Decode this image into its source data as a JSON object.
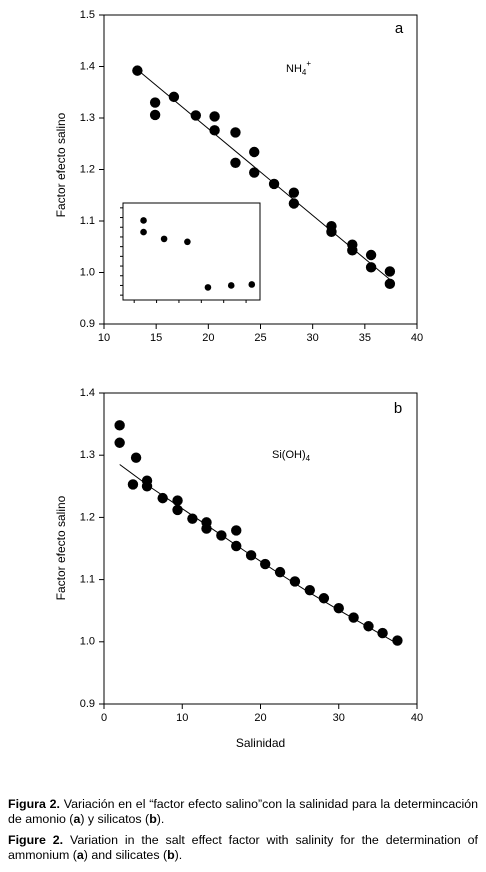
{
  "chart_data": [
    {
      "type": "scatter",
      "panel_label": "a",
      "annotation": "NH4+",
      "xlabel": "",
      "ylabel": "Factor efecto salino",
      "xlim": [
        10,
        40
      ],
      "ylim": [
        0.9,
        1.5
      ],
      "x_ticks": [
        "10",
        "15",
        "20",
        "25",
        "30",
        "35",
        "40"
      ],
      "y_ticks": [
        "0.9",
        "1.0",
        "1.1",
        "1.2",
        "1.3",
        "1.4",
        "1.5"
      ],
      "grid": false,
      "points": [
        {
          "x": 13.2,
          "y": 1.392
        },
        {
          "x": 14.9,
          "y": 1.33
        },
        {
          "x": 14.9,
          "y": 1.306
        },
        {
          "x": 16.7,
          "y": 1.341
        },
        {
          "x": 18.8,
          "y": 1.305
        },
        {
          "x": 20.6,
          "y": 1.303
        },
        {
          "x": 20.6,
          "y": 1.276
        },
        {
          "x": 22.6,
          "y": 1.272
        },
        {
          "x": 22.6,
          "y": 1.213
        },
        {
          "x": 24.4,
          "y": 1.234
        },
        {
          "x": 24.4,
          "y": 1.194
        },
        {
          "x": 26.3,
          "y": 1.172
        },
        {
          "x": 28.2,
          "y": 1.155
        },
        {
          "x": 28.2,
          "y": 1.134
        },
        {
          "x": 31.8,
          "y": 1.09
        },
        {
          "x": 31.8,
          "y": 1.079
        },
        {
          "x": 33.8,
          "y": 1.054
        },
        {
          "x": 33.8,
          "y": 1.043
        },
        {
          "x": 35.6,
          "y": 1.034
        },
        {
          "x": 35.6,
          "y": 1.01
        },
        {
          "x": 37.4,
          "y": 1.002
        },
        {
          "x": 37.4,
          "y": 0.978
        }
      ],
      "fit_line": [
        {
          "x": 13.0,
          "y": 1.397
        },
        {
          "x": 37.6,
          "y": 0.983
        }
      ],
      "inset": {
        "x_ticks": 6,
        "y_ticks": 10,
        "points": [
          {
            "x": 0.15,
            "y": 0.82
          },
          {
            "x": 0.15,
            "y": 0.7
          },
          {
            "x": 0.3,
            "y": 0.63
          },
          {
            "x": 0.47,
            "y": 0.6
          },
          {
            "x": 0.62,
            "y": 0.13
          },
          {
            "x": 0.79,
            "y": 0.15
          },
          {
            "x": 0.94,
            "y": 0.16
          }
        ]
      }
    },
    {
      "type": "scatter",
      "panel_label": "b",
      "annotation": "Si(OH)4",
      "xlabel": "Salinidad",
      "ylabel": "Factor efecto salino",
      "xlim": [
        0,
        40
      ],
      "ylim": [
        0.9,
        1.4
      ],
      "x_ticks": [
        "0",
        "10",
        "20",
        "30",
        "40"
      ],
      "y_ticks": [
        "0.9",
        "1.0",
        "1.1",
        "1.2",
        "1.3",
        "1.4"
      ],
      "grid": false,
      "points": [
        {
          "x": 2.0,
          "y": 1.348
        },
        {
          "x": 2.0,
          "y": 1.32
        },
        {
          "x": 3.7,
          "y": 1.253
        },
        {
          "x": 4.1,
          "y": 1.296
        },
        {
          "x": 5.5,
          "y": 1.259
        },
        {
          "x": 5.5,
          "y": 1.25
        },
        {
          "x": 7.5,
          "y": 1.231
        },
        {
          "x": 9.4,
          "y": 1.227
        },
        {
          "x": 9.4,
          "y": 1.212
        },
        {
          "x": 11.3,
          "y": 1.198
        },
        {
          "x": 13.1,
          "y": 1.192
        },
        {
          "x": 13.1,
          "y": 1.182
        },
        {
          "x": 15.0,
          "y": 1.171
        },
        {
          "x": 16.9,
          "y": 1.179
        },
        {
          "x": 16.9,
          "y": 1.154
        },
        {
          "x": 18.8,
          "y": 1.139
        },
        {
          "x": 20.6,
          "y": 1.125
        },
        {
          "x": 22.5,
          "y": 1.112
        },
        {
          "x": 24.4,
          "y": 1.097
        },
        {
          "x": 26.3,
          "y": 1.083
        },
        {
          "x": 28.1,
          "y": 1.07
        },
        {
          "x": 30.0,
          "y": 1.054
        },
        {
          "x": 31.9,
          "y": 1.039
        },
        {
          "x": 33.8,
          "y": 1.025
        },
        {
          "x": 35.6,
          "y": 1.014
        },
        {
          "x": 37.5,
          "y": 1.002
        }
      ],
      "fit_line": [
        {
          "x": 2.0,
          "y": 1.285
        },
        {
          "x": 6.0,
          "y": 1.248
        },
        {
          "x": 10.0,
          "y": 1.214
        },
        {
          "x": 14.0,
          "y": 1.18
        },
        {
          "x": 18.0,
          "y": 1.146
        },
        {
          "x": 22.0,
          "y": 1.113
        },
        {
          "x": 26.0,
          "y": 1.081
        },
        {
          "x": 30.0,
          "y": 1.051
        },
        {
          "x": 34.0,
          "y": 1.022
        },
        {
          "x": 37.5,
          "y": 0.997
        }
      ]
    }
  ],
  "caption": {
    "es_label": "Figura 2.",
    "es_text_1": " Variación en el “factor efecto salino”con la salinidad para la determincación de amonio (",
    "es_a": "a",
    "es_text_2": ") y silicatos (",
    "es_b": "b",
    "es_text_3": ").",
    "en_label": "Figure 2.",
    "en_text_1": " Variation in the salt effect factor with salinity for the determination of ammonium (",
    "en_a": "a",
    "en_text_2": ") and silicates (",
    "en_b": "b",
    "en_text_3": ")."
  }
}
